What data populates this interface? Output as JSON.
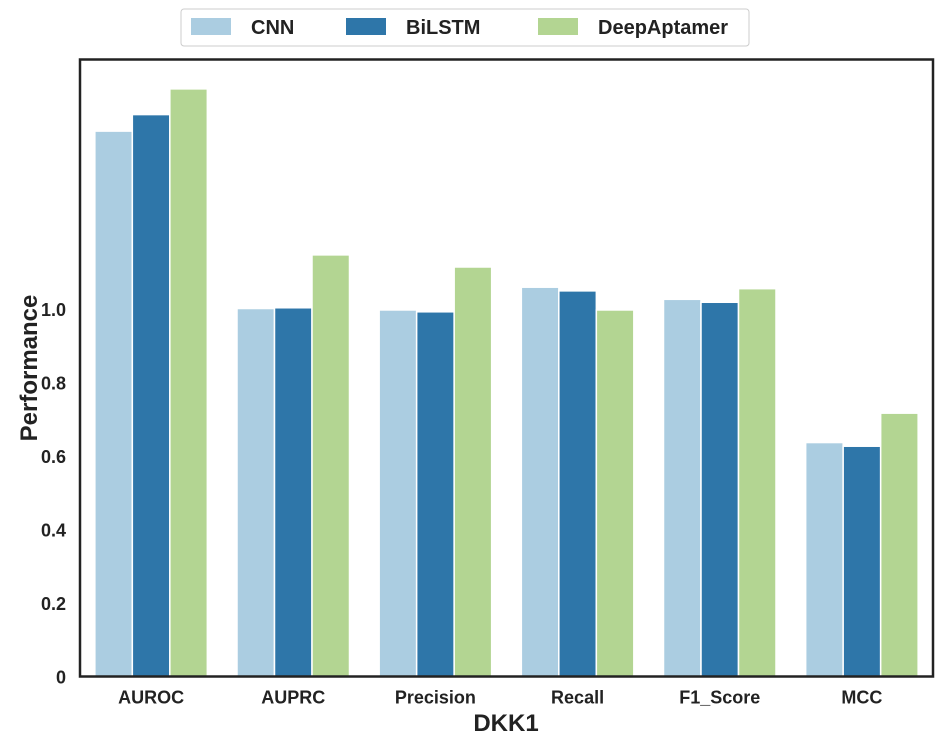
{
  "chart_data": {
    "type": "bar",
    "title": "",
    "xlabel": "DKK1",
    "ylabel": "Performance",
    "categories": [
      "AUROC",
      "AUPRC",
      "Precision",
      "Recall",
      "F1_Score",
      "MCC"
    ],
    "series": [
      {
        "name": "CNN",
        "color": "#abcde1",
        "values": [
          1.485,
          1.002,
          0.998,
          1.06,
          1.027,
          0.637
        ]
      },
      {
        "name": "BiLSTM",
        "color": "#2e76a9",
        "values": [
          1.53,
          1.004,
          0.993,
          1.05,
          1.019,
          0.627
        ]
      },
      {
        "name": "DeepAptamer",
        "color": "#b3d592",
        "values": [
          1.6,
          1.148,
          1.115,
          0.998,
          1.056,
          0.717
        ]
      }
    ],
    "yticks": [
      0,
      0.2,
      0.4,
      0.6,
      0.8,
      1.0
    ],
    "ytick_labels": [
      "0",
      "0.2",
      "0.4",
      "0.6",
      "0.8",
      "1.0"
    ],
    "ylim": [
      0,
      1.68
    ],
    "legend_position": "top-center",
    "grid": false,
    "frame_color": "#222222",
    "background": "#ffffff"
  }
}
